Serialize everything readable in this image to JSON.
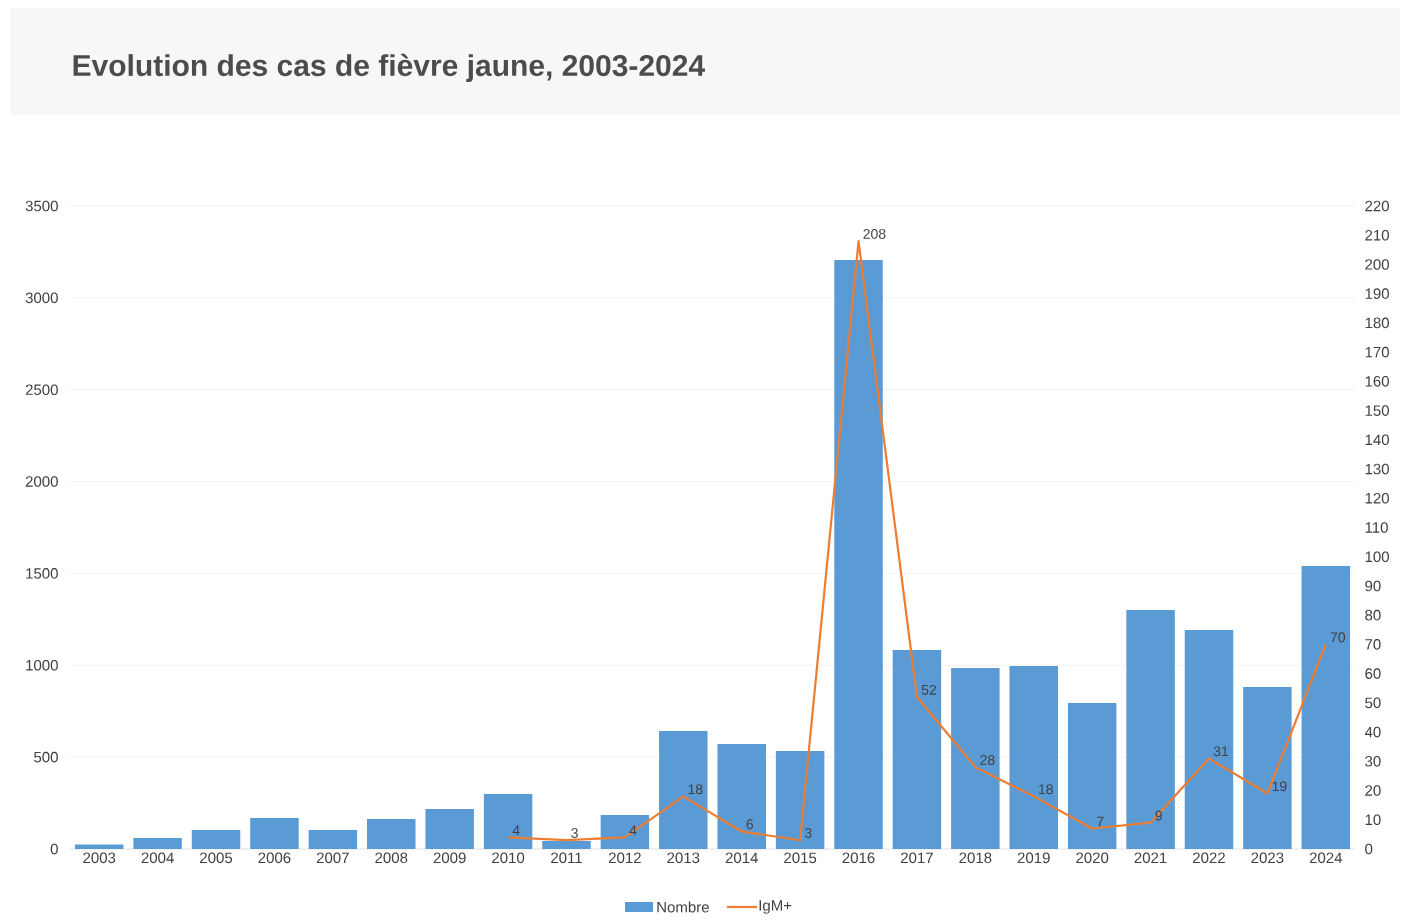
{
  "chart_data": {
    "type": "bar",
    "title": "Evolution des cas de fièvre jaune, 2003-2024",
    "categories": [
      "2003",
      "2004",
      "2005",
      "2006",
      "2007",
      "2008",
      "2009",
      "2010",
      "2011",
      "2012",
      "2013",
      "2014",
      "2015",
      "2016",
      "2017",
      "2018",
      "2019",
      "2020",
      "2021",
      "2022",
      "2023",
      "2024"
    ],
    "series": [
      {
        "name": "Nombre",
        "color": "#5b9bd5",
        "values": [
          25,
          60,
          103,
          169,
          103,
          163,
          218,
          299,
          44,
          185,
          642,
          571,
          533,
          3206,
          1083,
          985,
          996,
          795,
          1301,
          1192,
          882,
          1540
        ]
      },
      {
        "name": "IgM+",
        "type": "line",
        "axis": "y2",
        "color": "#ed7d31",
        "values": [
          null,
          null,
          null,
          null,
          null,
          null,
          null,
          4,
          3,
          4,
          18,
          6,
          3,
          208,
          52,
          28,
          18,
          7,
          9,
          31,
          19,
          70
        ],
        "value_labels": [
          null,
          null,
          null,
          null,
          null,
          null,
          null,
          "4",
          "3",
          "4",
          "18",
          "6",
          "3",
          "208",
          "52",
          "28",
          "18",
          "7",
          "9",
          "31",
          "19",
          "70"
        ]
      }
    ],
    "ylim": [
      0,
      3500
    ],
    "yticks": [
      0,
      500,
      1000,
      1500,
      2000,
      2500,
      3000,
      3500
    ],
    "y2lim": [
      0,
      220
    ],
    "y2ticks": [
      0,
      10,
      20,
      30,
      40,
      50,
      60,
      70,
      80,
      90,
      100,
      110,
      120,
      130,
      140,
      150,
      160,
      170,
      180,
      190,
      200,
      210,
      220
    ],
    "grid": "y",
    "legend": "bottom",
    "marker": "none",
    "line_style": "solid"
  }
}
